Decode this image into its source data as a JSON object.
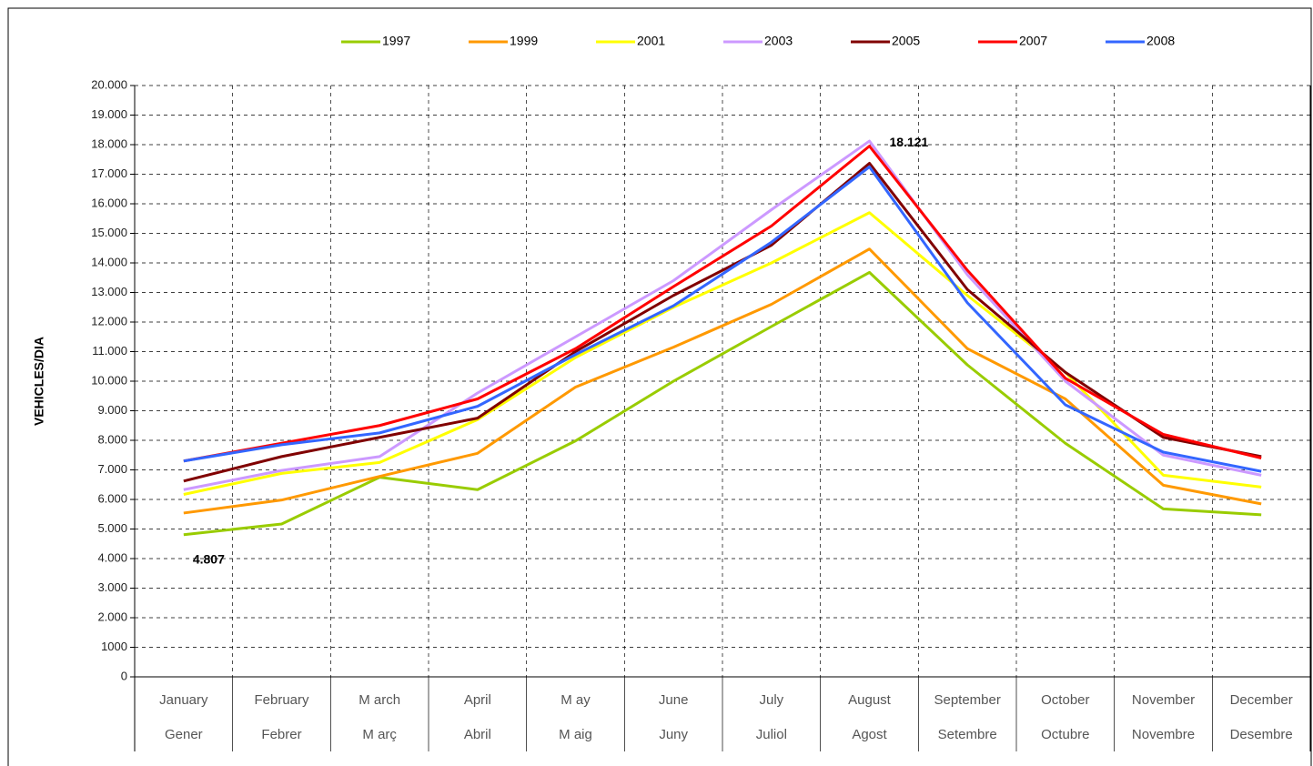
{
  "chart_data": {
    "type": "line",
    "y_label": "VEHICLES/DIA",
    "categories": [
      [
        "January",
        "Gener"
      ],
      [
        "February",
        "Febrer"
      ],
      [
        "M arch",
        "M arç"
      ],
      [
        "April",
        "Abril"
      ],
      [
        "M ay",
        "M aig"
      ],
      [
        "June",
        "Juny"
      ],
      [
        "July",
        "Juliol"
      ],
      [
        "August",
        "Agost"
      ],
      [
        "September",
        "Setembre"
      ],
      [
        "October",
        "Octubre"
      ],
      [
        "November",
        "Novembre"
      ],
      [
        "December",
        "Desembre"
      ]
    ],
    "series": [
      {
        "name": "1997",
        "color": "#99cc00",
        "values": [
          4807,
          5170,
          6750,
          6330,
          7980,
          10000,
          11850,
          13680,
          10550,
          7900,
          5680,
          5480
        ],
        "value_labels": [
          "4.807",
          null,
          null,
          null,
          null,
          null,
          null,
          null,
          null,
          null,
          null,
          null
        ]
      },
      {
        "name": "1999",
        "color": "#ff9900",
        "values": [
          5540,
          5980,
          6780,
          7560,
          9800,
          11150,
          12600,
          14470,
          11100,
          9400,
          6480,
          5850
        ]
      },
      {
        "name": "2001",
        "color": "#ffff00",
        "values": [
          6170,
          6880,
          7250,
          8700,
          10800,
          12500,
          14000,
          15700,
          12900,
          10300,
          6820,
          6420
        ]
      },
      {
        "name": "2003",
        "color": "#cc99ff",
        "values": [
          6330,
          6980,
          7450,
          9600,
          11500,
          13400,
          15800,
          18121,
          13600,
          10000,
          7500,
          6820
        ],
        "value_labels": [
          null,
          null,
          null,
          null,
          null,
          null,
          null,
          "18.121",
          null,
          null,
          null,
          null
        ]
      },
      {
        "name": "2005",
        "color": "#800000",
        "values": [
          6620,
          7450,
          8100,
          8750,
          11000,
          12900,
          14600,
          17370,
          13100,
          10300,
          8100,
          7450
        ]
      },
      {
        "name": "2007",
        "color": "#ff0000",
        "values": [
          7300,
          7900,
          8500,
          9400,
          11100,
          13200,
          15250,
          17950,
          13750,
          10100,
          8200,
          7400
        ]
      },
      {
        "name": "2008",
        "color": "#3366ff",
        "values": [
          7300,
          7850,
          8250,
          9150,
          10900,
          12550,
          14700,
          17250,
          12650,
          9200,
          7600,
          6950
        ]
      }
    ],
    "ylim": [
      0,
      20000
    ],
    "yticks": [
      0,
      1000,
      {
        "value": 2000,
        "label": "2.000"
      },
      {
        "value": 3000,
        "label": "3.000"
      },
      {
        "value": 4000,
        "label": "4.000"
      },
      {
        "value": 5000,
        "label": "5.000"
      },
      {
        "value": 6000,
        "label": "6.000"
      },
      {
        "value": 7000,
        "label": "7.000"
      },
      {
        "value": 8000,
        "label": "8.000"
      },
      {
        "value": 9000,
        "label": "9.000"
      },
      {
        "value": 10000,
        "label": "10.000"
      },
      {
        "value": 11000,
        "label": "11.000"
      },
      {
        "value": 12000,
        "label": "12.000"
      },
      {
        "value": 13000,
        "label": "13.000"
      },
      {
        "value": 14000,
        "label": "14.000"
      },
      {
        "value": 15000,
        "label": "15.000"
      },
      {
        "value": 16000,
        "label": "16.000"
      },
      {
        "value": 17000,
        "label": "17.000"
      },
      {
        "value": 18000,
        "label": "18.000"
      },
      {
        "value": 19000,
        "label": "19.000"
      },
      {
        "value": 20000,
        "label": "20.000"
      }
    ],
    "grid": true,
    "legend": "top"
  }
}
